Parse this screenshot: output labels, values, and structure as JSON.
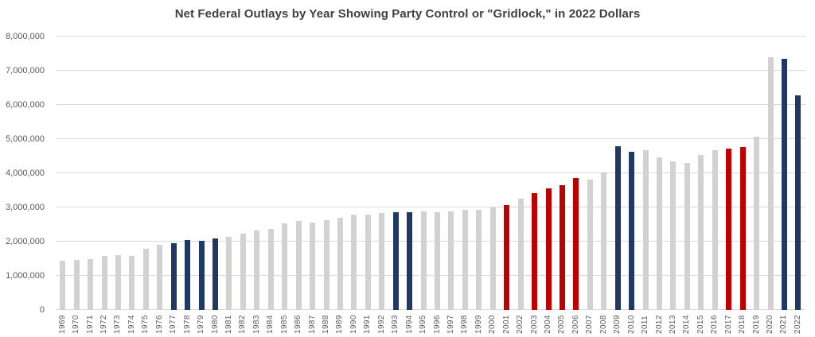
{
  "chart_data": {
    "type": "bar",
    "title": "Net Federal Outlays by Year Showing Party Control or \"Gridlock,\" in 2022 Dollars",
    "xlabel": "",
    "ylabel": "",
    "ylim": [
      0,
      8000000
    ],
    "y_tick_interval": 1000000,
    "y_tick_labels": [
      "0",
      "1,000,000",
      "2,000,000",
      "3,000,000",
      "4,000,000",
      "5,000,000",
      "6,000,000",
      "7,000,000",
      "8,000,000"
    ],
    "grid": "horizontal gridlines on",
    "legend": "none",
    "categories": [
      "1969",
      "1970",
      "1971",
      "1972",
      "1973",
      "1974",
      "1975",
      "1976",
      "1977",
      "1978",
      "1979",
      "1980",
      "1981",
      "1982",
      "1983",
      "1984",
      "1985",
      "1986",
      "1987",
      "1988",
      "1989",
      "1990",
      "1991",
      "1992",
      "1993",
      "1994",
      "1995",
      "1996",
      "1997",
      "1998",
      "1999",
      "2000",
      "2001",
      "2002",
      "2003",
      "2004",
      "2005",
      "2006",
      "2007",
      "2008",
      "2009",
      "2010",
      "2011",
      "2012",
      "2013",
      "2014",
      "2015",
      "2016",
      "2017",
      "2018",
      "2019",
      "2020",
      "2021",
      "2022"
    ],
    "values": [
      1450000,
      1460000,
      1500000,
      1590000,
      1600000,
      1590000,
      1800000,
      1900000,
      1960000,
      2050000,
      2030000,
      2090000,
      2150000,
      2240000,
      2330000,
      2370000,
      2540000,
      2600000,
      2570000,
      2620000,
      2690000,
      2780000,
      2800000,
      2840000,
      2850000,
      2870000,
      2890000,
      2870000,
      2880000,
      2920000,
      2940000,
      2990000,
      3080000,
      3260000,
      3430000,
      3550000,
      3650000,
      3860000,
      3820000,
      4030000,
      4800000,
      4630000,
      4680000,
      4470000,
      4350000,
      4300000,
      4530000,
      4670000,
      4730000,
      4760000,
      5060000,
      7400000,
      7360000,
      6270000
    ],
    "color_key": [
      "gray",
      "gray",
      "gray",
      "gray",
      "gray",
      "gray",
      "gray",
      "gray",
      "navy",
      "navy",
      "navy",
      "navy",
      "gray",
      "gray",
      "gray",
      "gray",
      "gray",
      "gray",
      "gray",
      "gray",
      "gray",
      "gray",
      "gray",
      "gray",
      "navy",
      "navy",
      "gray",
      "gray",
      "gray",
      "gray",
      "gray",
      "gray",
      "red",
      "gray",
      "red",
      "red",
      "red",
      "red",
      "gray",
      "gray",
      "navy",
      "navy",
      "gray",
      "gray",
      "gray",
      "gray",
      "gray",
      "gray",
      "red",
      "red",
      "gray",
      "gray",
      "navy",
      "navy"
    ],
    "colors": {
      "gray": "#d2d2d2",
      "navy": "#1f3864",
      "red": "#c00000"
    },
    "style_colors": {
      "title_text": "#404040",
      "axis_tick_text": "#595959",
      "gridline": "#d9d9d9"
    }
  }
}
